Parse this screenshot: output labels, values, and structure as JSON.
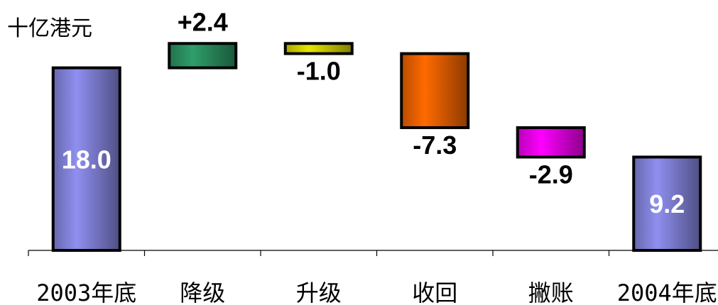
{
  "chart_data": {
    "type": "bar",
    "subtype": "waterfall",
    "unit_label": "十亿港元",
    "categories": [
      "2003年底",
      "降级",
      "升级",
      "收回",
      "撇账",
      "2004年底"
    ],
    "values": [
      18.0,
      2.4,
      -1.0,
      -7.3,
      -2.9,
      9.2
    ],
    "value_labels": [
      "18.0",
      "+2.4",
      "-1.0",
      "-7.3",
      "-2.9",
      "9.2"
    ],
    "kinds": [
      "total",
      "delta",
      "delta",
      "delta",
      "delta",
      "total"
    ],
    "colors": [
      "#8f8ff0",
      "#2f9e6a",
      "#e8e600",
      "#ff6a00",
      "#ff00ff",
      "#8f8ff0"
    ],
    "ylim": [
      0,
      20.4
    ],
    "grid": false,
    "legend": "none"
  }
}
